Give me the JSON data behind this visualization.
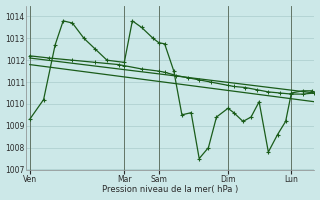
{
  "background_color": "#cce8e8",
  "grid_color": "#aacccc",
  "line_color": "#1a5c1a",
  "xlabel": "Pression niveau de la mer( hPa )",
  "ylim": [
    1007,
    1014.5
  ],
  "yticks": [
    1007,
    1008,
    1009,
    1010,
    1011,
    1012,
    1013,
    1014
  ],
  "xlim": [
    0,
    25
  ],
  "x_day_labels": [
    "Ven",
    "Mar",
    "Sam",
    "Dim",
    "Lun"
  ],
  "x_day_positions": [
    0.3,
    8.5,
    11.5,
    17.5,
    23.0
  ],
  "vline_positions": [
    0.3,
    8.5,
    11.5,
    17.5,
    23.0
  ],
  "series_zigzag_x": [
    0.3,
    1.5,
    2.5,
    3.2,
    4.0,
    5.0,
    6.0,
    7.0,
    8.5,
    9.2,
    10.0,
    11.0,
    11.5,
    12.0,
    12.8,
    13.5,
    14.3,
    15.0,
    15.8,
    16.5,
    17.5,
    18.0,
    18.8,
    19.5,
    20.2,
    21.0,
    21.8,
    22.5,
    23.0,
    24.0,
    24.8
  ],
  "series_zigzag_y": [
    1009.3,
    1010.2,
    1012.7,
    1013.8,
    1013.7,
    1013.0,
    1012.5,
    1012.0,
    1011.9,
    1013.8,
    1013.5,
    1013.0,
    1012.8,
    1012.75,
    1011.5,
    1009.5,
    1009.6,
    1007.5,
    1008.0,
    1009.4,
    1009.8,
    1009.6,
    1009.2,
    1009.4,
    1010.1,
    1007.8,
    1008.6,
    1009.2,
    1010.5,
    1010.6,
    1010.6
  ],
  "series_trend1_x": [
    0.3,
    25.0
  ],
  "series_trend1_y": [
    1012.1,
    1010.5
  ],
  "series_trend2_x": [
    0.3,
    25.0
  ],
  "series_trend2_y": [
    1011.8,
    1010.1
  ],
  "series_flat_x": [
    0.3,
    2.0,
    4.0,
    6.0,
    8.0,
    8.5,
    10.0,
    11.5,
    12.0,
    13.0,
    14.0,
    15.0,
    16.0,
    17.5,
    18.0,
    19.0,
    20.0,
    21.0,
    22.0,
    23.0,
    24.0,
    25.0
  ],
  "series_flat_y": [
    1012.2,
    1012.1,
    1012.0,
    1011.9,
    1011.8,
    1011.75,
    1011.6,
    1011.5,
    1011.45,
    1011.3,
    1011.2,
    1011.1,
    1011.0,
    1010.85,
    1010.8,
    1010.75,
    1010.65,
    1010.55,
    1010.5,
    1010.45,
    1010.45,
    1010.5
  ]
}
